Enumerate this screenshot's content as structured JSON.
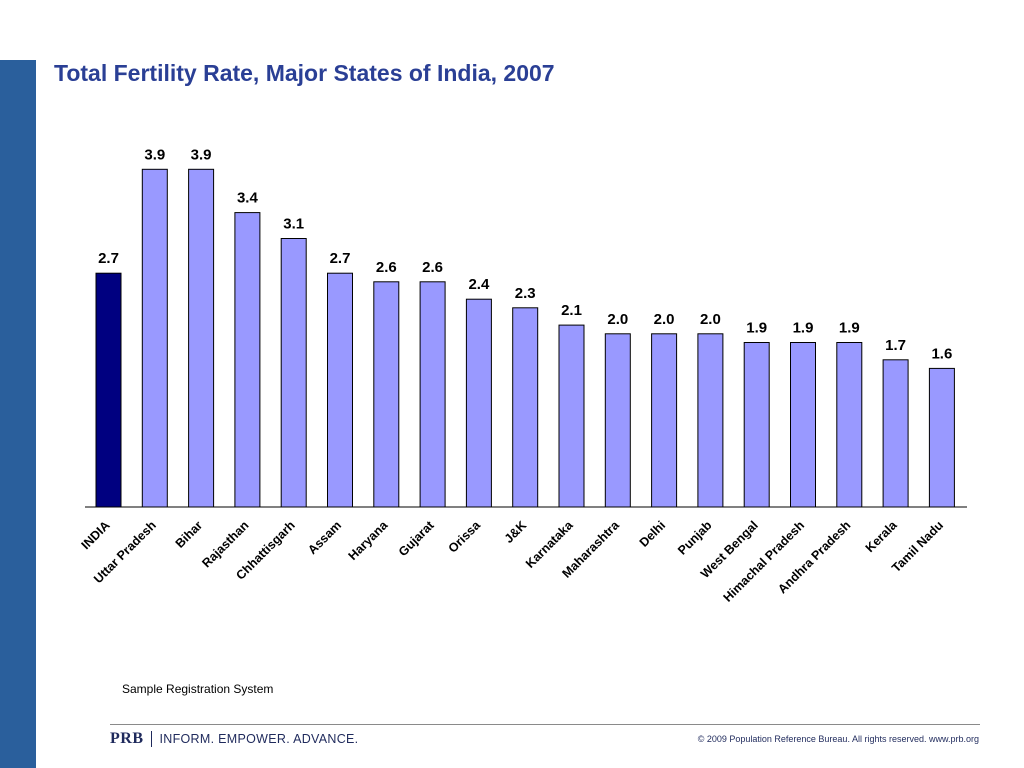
{
  "slide": {
    "title": "Total Fertility Rate, Major States of India, 2007",
    "source": "Sample Registration System",
    "footer": {
      "logo_text": "PRB",
      "tagline": "INFORM. EMPOWER. ADVANCE.",
      "copyright": "© 2009 Population Reference Bureau. All rights reserved. www.prb.org"
    }
  },
  "colors": {
    "side_bar": "#2a5f9c",
    "title": "#2a3f95",
    "highlight_bar": "#000080",
    "bar": "#9999ff",
    "bar_stroke": "#000000"
  },
  "chart_data": {
    "type": "bar",
    "title": "Total Fertility Rate, Major States of India, 2007",
    "xlabel": "",
    "ylabel": "",
    "ylim": [
      0,
      4.5
    ],
    "grid": false,
    "legend": "none",
    "highlight_category": "INDIA",
    "categories": [
      "INDIA",
      "Uttar Pradesh",
      "Bihar",
      "Rajasthan",
      "Chhattisgarh",
      "Assam",
      "Haryana",
      "Gujarat",
      "Orissa",
      "J&K",
      "Karnataka",
      "Maharashtra",
      "Delhi",
      "Punjab",
      "West Bengal",
      "Himachal Pradesh",
      "Andhra Pradesh",
      "Kerala",
      "Tamil Nadu"
    ],
    "values": [
      2.7,
      3.9,
      3.9,
      3.4,
      3.1,
      2.7,
      2.6,
      2.6,
      2.4,
      2.3,
      2.1,
      2.0,
      2.0,
      2.0,
      1.9,
      1.9,
      1.9,
      1.7,
      1.6
    ],
    "value_labels": [
      "2.7",
      "3.9",
      "3.9",
      "3.4",
      "3.1",
      "2.7",
      "2.6",
      "2.6",
      "2.4",
      "2.3",
      "2.1",
      "2.0",
      "2.0",
      "2.0",
      "1.9",
      "1.9",
      "1.9",
      "1.7",
      "1.6"
    ]
  }
}
